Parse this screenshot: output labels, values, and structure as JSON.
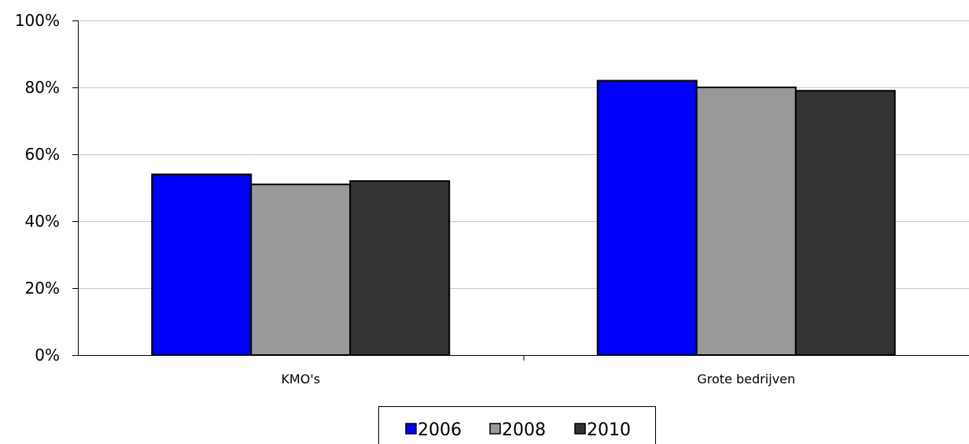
{
  "chart_data": {
    "type": "bar",
    "title": "",
    "xlabel": "",
    "ylabel": "",
    "categories": [
      "KMO's",
      "Grote bedrijven"
    ],
    "series": [
      {
        "name": "2006",
        "values": [
          54,
          82
        ],
        "color": "#0000ff"
      },
      {
        "name": "2008",
        "values": [
          51,
          80
        ],
        "color": "#999999"
      },
      {
        "name": "2010",
        "values": [
          52,
          79
        ],
        "color": "#333333"
      }
    ],
    "ylim": [
      0,
      100
    ],
    "yticks": [
      0,
      20,
      40,
      60,
      80,
      100
    ],
    "ytick_labels": [
      "0%",
      "20%",
      "40%",
      "60%",
      "80%",
      "100%"
    ],
    "grid": true,
    "legend_position": "bottom"
  }
}
